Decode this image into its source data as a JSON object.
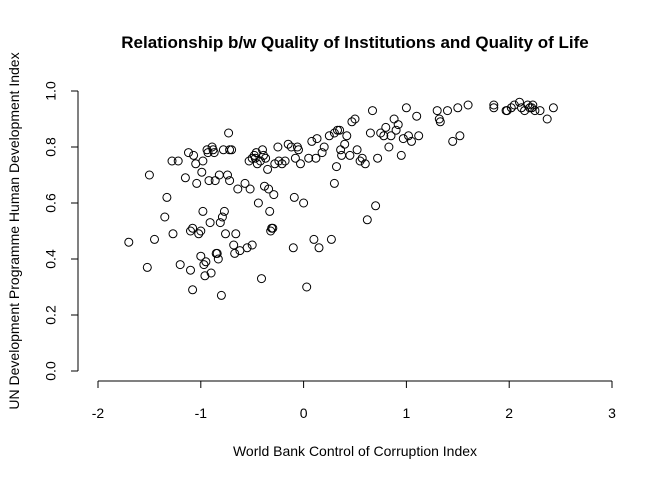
{
  "chart_data": {
    "type": "scatter",
    "title": "Relationship b/w Quality of Institutions and Quality of Life",
    "xlabel": "World Bank Control of Corruption Index",
    "ylabel": "UN Development Programme Human Development Index",
    "xlim": [
      -2,
      3
    ],
    "ylim": [
      0,
      1
    ],
    "xticks": [
      -2,
      -1,
      0,
      1,
      2,
      3
    ],
    "xtick_labels": [
      "-2",
      "-1",
      "0",
      "1",
      "2",
      "3"
    ],
    "yticks": [
      0.0,
      0.2,
      0.4,
      0.6,
      0.8,
      1.0
    ],
    "ytick_labels": [
      "0.0",
      "0.2",
      "0.4",
      "0.6",
      "0.8",
      "1.0"
    ],
    "grid": false,
    "marker": "open-circle",
    "points": [
      [
        -1.7,
        0.46
      ],
      [
        -1.52,
        0.37
      ],
      [
        -1.5,
        0.7
      ],
      [
        -1.45,
        0.47
      ],
      [
        -1.35,
        0.55
      ],
      [
        -1.33,
        0.62
      ],
      [
        -1.28,
        0.75
      ],
      [
        -1.27,
        0.49
      ],
      [
        -1.22,
        0.75
      ],
      [
        -1.2,
        0.38
      ],
      [
        -1.15,
        0.69
      ],
      [
        -1.12,
        0.78
      ],
      [
        -1.1,
        0.5
      ],
      [
        -1.1,
        0.36
      ],
      [
        -1.08,
        0.29
      ],
      [
        -1.08,
        0.51
      ],
      [
        -1.07,
        0.77
      ],
      [
        -1.05,
        0.74
      ],
      [
        -1.04,
        0.67
      ],
      [
        -1.02,
        0.49
      ],
      [
        -1.0,
        0.5
      ],
      [
        -1.0,
        0.41
      ],
      [
        -0.99,
        0.71
      ],
      [
        -0.98,
        0.75
      ],
      [
        -0.98,
        0.57
      ],
      [
        -0.97,
        0.38
      ],
      [
        -0.96,
        0.34
      ],
      [
        -0.95,
        0.39
      ],
      [
        -0.94,
        0.79
      ],
      [
        -0.93,
        0.78
      ],
      [
        -0.92,
        0.68
      ],
      [
        -0.91,
        0.53
      ],
      [
        -0.9,
        0.35
      ],
      [
        -0.89,
        0.8
      ],
      [
        -0.88,
        0.79
      ],
      [
        -0.87,
        0.78
      ],
      [
        -0.86,
        0.68
      ],
      [
        -0.85,
        0.42
      ],
      [
        -0.84,
        0.42
      ],
      [
        -0.83,
        0.4
      ],
      [
        -0.82,
        0.7
      ],
      [
        -0.81,
        0.53
      ],
      [
        -0.8,
        0.27
      ],
      [
        -0.79,
        0.55
      ],
      [
        -0.78,
        0.79
      ],
      [
        -0.77,
        0.57
      ],
      [
        -0.76,
        0.49
      ],
      [
        -0.74,
        0.7
      ],
      [
        -0.73,
        0.85
      ],
      [
        -0.72,
        0.79
      ],
      [
        -0.72,
        0.68
      ],
      [
        -0.7,
        0.79
      ],
      [
        -0.68,
        0.45
      ],
      [
        -0.67,
        0.42
      ],
      [
        -0.66,
        0.49
      ],
      [
        -0.64,
        0.65
      ],
      [
        -0.62,
        0.43
      ],
      [
        -0.57,
        0.67
      ],
      [
        -0.55,
        0.44
      ],
      [
        -0.53,
        0.75
      ],
      [
        -0.52,
        0.65
      ],
      [
        -0.5,
        0.76
      ],
      [
        -0.5,
        0.45
      ],
      [
        -0.48,
        0.77
      ],
      [
        -0.47,
        0.76
      ],
      [
        -0.46,
        0.78
      ],
      [
        -0.45,
        0.74
      ],
      [
        -0.44,
        0.6
      ],
      [
        -0.42,
        0.75
      ],
      [
        -0.41,
        0.33
      ],
      [
        -0.4,
        0.79
      ],
      [
        -0.39,
        0.77
      ],
      [
        -0.38,
        0.66
      ],
      [
        -0.37,
        0.76
      ],
      [
        -0.35,
        0.72
      ],
      [
        -0.34,
        0.65
      ],
      [
        -0.33,
        0.57
      ],
      [
        -0.32,
        0.5
      ],
      [
        -0.31,
        0.51
      ],
      [
        -0.3,
        0.51
      ],
      [
        -0.29,
        0.63
      ],
      [
        -0.28,
        0.74
      ],
      [
        -0.25,
        0.8
      ],
      [
        -0.24,
        0.75
      ],
      [
        -0.21,
        0.74
      ],
      [
        -0.18,
        0.75
      ],
      [
        -0.15,
        0.81
      ],
      [
        -0.12,
        0.8
      ],
      [
        -0.1,
        0.44
      ],
      [
        -0.09,
        0.62
      ],
      [
        -0.08,
        0.76
      ],
      [
        -0.06,
        0.8
      ],
      [
        -0.05,
        0.79
      ],
      [
        -0.03,
        0.74
      ],
      [
        0.0,
        0.6
      ],
      [
        0.03,
        0.3
      ],
      [
        0.05,
        0.76
      ],
      [
        0.08,
        0.82
      ],
      [
        0.1,
        0.47
      ],
      [
        0.12,
        0.76
      ],
      [
        0.13,
        0.83
      ],
      [
        0.15,
        0.44
      ],
      [
        0.18,
        0.78
      ],
      [
        0.2,
        0.8
      ],
      [
        0.25,
        0.84
      ],
      [
        0.27,
        0.47
      ],
      [
        0.3,
        0.67
      ],
      [
        0.3,
        0.85
      ],
      [
        0.32,
        0.73
      ],
      [
        0.33,
        0.86
      ],
      [
        0.35,
        0.86
      ],
      [
        0.36,
        0.79
      ],
      [
        0.37,
        0.77
      ],
      [
        0.4,
        0.81
      ],
      [
        0.42,
        0.84
      ],
      [
        0.45,
        0.77
      ],
      [
        0.47,
        0.89
      ],
      [
        0.5,
        0.9
      ],
      [
        0.52,
        0.79
      ],
      [
        0.55,
        0.75
      ],
      [
        0.57,
        0.76
      ],
      [
        0.6,
        0.74
      ],
      [
        0.62,
        0.54
      ],
      [
        0.65,
        0.85
      ],
      [
        0.67,
        0.93
      ],
      [
        0.7,
        0.59
      ],
      [
        0.72,
        0.76
      ],
      [
        0.75,
        0.85
      ],
      [
        0.78,
        0.84
      ],
      [
        0.8,
        0.87
      ],
      [
        0.83,
        0.8
      ],
      [
        0.85,
        0.84
      ],
      [
        0.88,
        0.9
      ],
      [
        0.9,
        0.86
      ],
      [
        0.92,
        0.88
      ],
      [
        0.95,
        0.77
      ],
      [
        0.97,
        0.83
      ],
      [
        1.0,
        0.94
      ],
      [
        1.02,
        0.84
      ],
      [
        1.05,
        0.82
      ],
      [
        1.1,
        0.91
      ],
      [
        1.12,
        0.84
      ],
      [
        1.3,
        0.93
      ],
      [
        1.32,
        0.9
      ],
      [
        1.33,
        0.89
      ],
      [
        1.4,
        0.93
      ],
      [
        1.45,
        0.82
      ],
      [
        1.5,
        0.94
      ],
      [
        1.52,
        0.84
      ],
      [
        1.6,
        0.95
      ],
      [
        1.85,
        0.94
      ],
      [
        1.85,
        0.95
      ],
      [
        1.97,
        0.93
      ],
      [
        1.98,
        0.93
      ],
      [
        2.02,
        0.94
      ],
      [
        2.05,
        0.95
      ],
      [
        2.1,
        0.96
      ],
      [
        2.12,
        0.94
      ],
      [
        2.15,
        0.93
      ],
      [
        2.18,
        0.95
      ],
      [
        2.2,
        0.94
      ],
      [
        2.22,
        0.94
      ],
      [
        2.23,
        0.95
      ],
      [
        2.25,
        0.93
      ],
      [
        2.3,
        0.93
      ],
      [
        2.37,
        0.9
      ],
      [
        2.43,
        0.94
      ]
    ]
  }
}
